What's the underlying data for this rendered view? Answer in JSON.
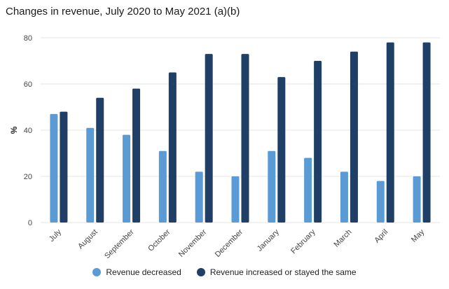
{
  "chart_data": {
    "type": "bar",
    "title": "Changes in revenue, July 2020 to May 2021 (a)(b)",
    "xlabel": "",
    "ylabel": "%",
    "ylim": [
      0,
      80
    ],
    "yticks": [
      0,
      20,
      40,
      60,
      80
    ],
    "grid": true,
    "legend_position": "bottom",
    "categories": [
      "July",
      "August",
      "September",
      "October",
      "November",
      "December",
      "January",
      "February",
      "March",
      "April",
      "May"
    ],
    "series": [
      {
        "name": "Revenue decreased",
        "color": "#5b9bd5",
        "values": [
          47,
          41,
          38,
          31,
          22,
          20,
          31,
          28,
          22,
          18,
          20
        ]
      },
      {
        "name": "Revenue increased or stayed the same",
        "color": "#1f3f66",
        "values": [
          48,
          54,
          58,
          65,
          73,
          73,
          63,
          70,
          74,
          78,
          78
        ]
      }
    ]
  }
}
